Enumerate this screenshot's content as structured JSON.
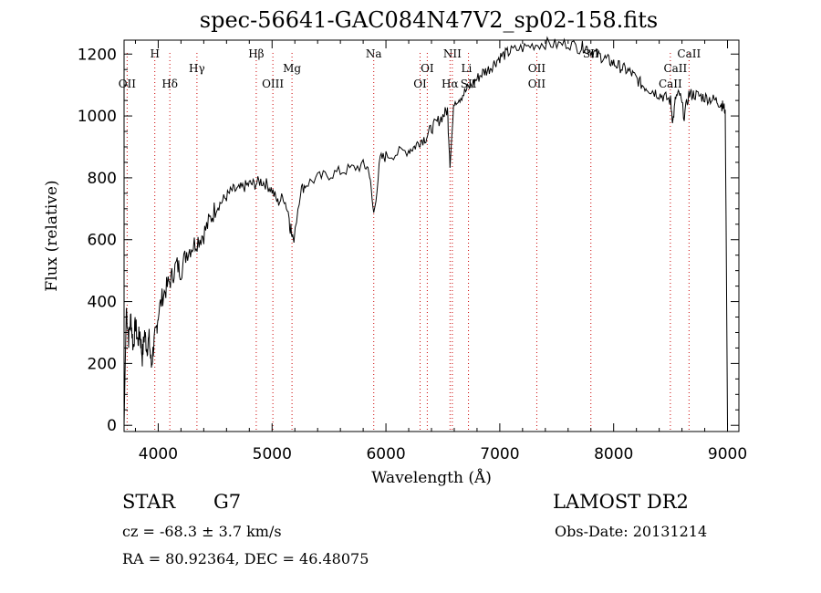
{
  "chart_data": {
    "type": "line",
    "title": "spec-56641-GAC084N47V2_sp02-158.fits",
    "xlabel": "Wavelength (Å)",
    "ylabel": "Flux (relative)",
    "xlim": [
      3700,
      9100
    ],
    "ylim": [
      -20,
      1245
    ],
    "xticks": [
      4000,
      5000,
      6000,
      7000,
      8000,
      9000
    ],
    "yticks": [
      0,
      200,
      400,
      600,
      800,
      1000,
      1200
    ],
    "grid": false,
    "spectrum": {
      "x": [
        3700,
        3720,
        3740,
        3760,
        3780,
        3800,
        3820,
        3840,
        3860,
        3880,
        3900,
        3920,
        3940,
        3960,
        3980,
        4000,
        4040,
        4080,
        4120,
        4160,
        4200,
        4250,
        4300,
        4350,
        4400,
        4450,
        4500,
        4550,
        4600,
        4650,
        4700,
        4750,
        4800,
        4850,
        4900,
        4950,
        5000,
        5050,
        5100,
        5150,
        5180,
        5250,
        5300,
        5400,
        5500,
        5600,
        5700,
        5800,
        5850,
        5893,
        5950,
        6000,
        6100,
        6200,
        6250,
        6300,
        6350,
        6400,
        6450,
        6500,
        6540,
        6563,
        6600,
        6650,
        6700,
        6750,
        6800,
        6850,
        6900,
        6950,
        7000,
        7050,
        7100,
        7200,
        7300,
        7400,
        7500,
        7600,
        7700,
        7750,
        7800,
        7850,
        7900,
        7950,
        8000,
        8050,
        8100,
        8150,
        8200,
        8250,
        8300,
        8350,
        8400,
        8450,
        8500,
        8520,
        8545,
        8580,
        8620,
        8660,
        8700,
        8750,
        8800,
        8850,
        8900,
        8940,
        8960,
        8980,
        9000
      ],
      "y": [
        0,
        380,
        280,
        350,
        250,
        330,
        270,
        300,
        220,
        300,
        250,
        280,
        190,
        260,
        300,
        360,
        420,
        450,
        480,
        520,
        500,
        560,
        580,
        600,
        620,
        660,
        700,
        720,
        740,
        760,
        760,
        770,
        780,
        780,
        790,
        780,
        760,
        720,
        740,
        680,
        590,
        760,
        780,
        800,
        810,
        820,
        830,
        840,
        830,
        680,
        860,
        870,
        880,
        890,
        900,
        920,
        930,
        960,
        980,
        1000,
        1020,
        850,
        1050,
        1060,
        1080,
        1100,
        1120,
        1140,
        1150,
        1170,
        1190,
        1200,
        1210,
        1220,
        1230,
        1235,
        1230,
        1235,
        1220,
        1225,
        1210,
        1200,
        1190,
        1180,
        1170,
        1160,
        1150,
        1140,
        1120,
        1100,
        1090,
        1080,
        1070,
        1060,
        1050,
        980,
        1060,
        1070,
        1000,
        1070,
        1070,
        1065,
        1060,
        1055,
        1050,
        1040,
        1030,
        1020,
        0
      ]
    },
    "lines_top": [
      {
        "label": "H",
        "x": 3970
      },
      {
        "label": "Hβ",
        "x": 4861
      },
      {
        "label": "Na",
        "x": 5893
      },
      {
        "label": "NII",
        "x": 6583
      },
      {
        "label": "SII",
        "x": 7800
      },
      {
        "label": "CaII",
        "x": 8662
      }
    ],
    "lines_mid": [
      {
        "label": "Hγ",
        "x": 4340
      },
      {
        "label": "Mg",
        "x": 5175
      },
      {
        "label": "OI",
        "x": 6363
      },
      {
        "label": "Li",
        "x": 6708
      },
      {
        "label": "OII",
        "x": 7325
      },
      {
        "label": "CaII",
        "x": 8542
      }
    ],
    "lines_low": [
      {
        "label": "OII",
        "x": 3727
      },
      {
        "label": "Hδ",
        "x": 4102
      },
      {
        "label": "OIII",
        "x": 5007
      },
      {
        "label": "OI",
        "x": 6300
      },
      {
        "label": "Hα",
        "x": 6563
      },
      {
        "label": "SII",
        "x": 6725
      },
      {
        "label": "OII",
        "x": 7325
      },
      {
        "label": "CaII",
        "x": 8498
      }
    ],
    "line_positions": [
      3727,
      3970,
      4102,
      4340,
      4861,
      5007,
      5175,
      5893,
      6300,
      6363,
      6563,
      6583,
      6725,
      7325,
      7800,
      8498,
      8662
    ]
  },
  "info": {
    "star": "STAR",
    "obj_class": "G7",
    "survey": "LAMOST DR2",
    "cz": "cz = -68.3 ± 3.7 km/s",
    "obs_date": "Obs-Date: 20131214",
    "radec": "RA =  80.92364, DEC =  46.48075"
  }
}
